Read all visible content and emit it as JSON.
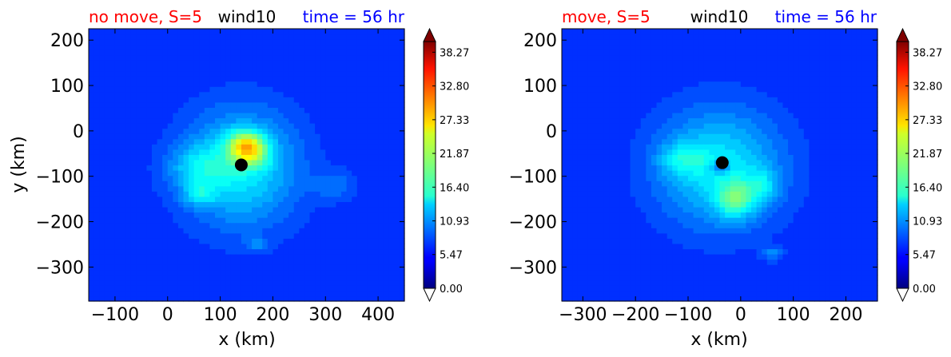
{
  "colors": {
    "title_left": "#ff0000",
    "title_center": "#000000",
    "title_right": "#0000ff",
    "marker": "#000000"
  },
  "chart_data": [
    {
      "type": "heatmap",
      "title_left": "no move, S=5",
      "title_center": "wind10",
      "title_right": "time = 56 hr",
      "xlabel": "x (km)",
      "ylabel": "y (km)",
      "xlim": [
        -150,
        450
      ],
      "ylim": [
        -375,
        225
      ],
      "xticks": [
        -100,
        0,
        100,
        200,
        300,
        400
      ],
      "xtick_labels": [
        "−100",
        "0",
        "100",
        "200",
        "300",
        "400"
      ],
      "yticks": [
        200,
        100,
        0,
        -100,
        -200,
        -300
      ],
      "ytick_labels": [
        "200",
        "100",
        "0",
        "−100",
        "−200",
        "−300"
      ],
      "center_marker": {
        "x": 140,
        "y": -75
      },
      "colorbar": {
        "min": 0.0,
        "max": 40.0,
        "extend": "both",
        "ticks": [
          38.27,
          32.8,
          27.33,
          21.87,
          16.4,
          10.93,
          5.47,
          0.0
        ],
        "tick_labels": [
          "38.27",
          "32.80",
          "27.33",
          "21.87",
          "16.40",
          "10.93",
          "5.47",
          "0.00"
        ]
      },
      "features": [
        {
          "x": 140,
          "y": -80,
          "sx": 110,
          "sy": 130,
          "v": 9
        },
        {
          "x": 60,
          "y": -80,
          "sx": 60,
          "sy": 50,
          "v": 5
        },
        {
          "x": 150,
          "y": -30,
          "sx": 35,
          "sy": 30,
          "v": 15
        },
        {
          "x": 160,
          "y": -60,
          "sx": 35,
          "sy": 25,
          "v": 6
        },
        {
          "x": 60,
          "y": -140,
          "sx": 30,
          "sy": 25,
          "v": 5
        },
        {
          "x": 320,
          "y": -120,
          "sx": 40,
          "sy": 35,
          "v": 3
        },
        {
          "x": 170,
          "y": -250,
          "sx": 20,
          "sy": 15,
          "v": 4
        }
      ],
      "background_level": 3
    },
    {
      "type": "heatmap",
      "title_left": "move, S=5",
      "title_center": "wind10",
      "title_right": "time = 56 hr",
      "xlabel": "x (km)",
      "ylabel": "",
      "xlim": [
        -340,
        260
      ],
      "ylim": [
        -375,
        225
      ],
      "xticks": [
        -300,
        -200,
        -100,
        0,
        100,
        200
      ],
      "xtick_labels": [
        "−300",
        "−200",
        "−100",
        "0",
        "100",
        "200"
      ],
      "yticks": [
        200,
        100,
        0,
        -100,
        -200,
        -300
      ],
      "ytick_labels": [
        "200",
        "100",
        "0",
        "−100",
        "−200",
        "−300"
      ],
      "center_marker": {
        "x": -35,
        "y": -70
      },
      "colorbar": {
        "min": 0.0,
        "max": 40.0,
        "extend": "both",
        "ticks": [
          38.27,
          32.8,
          27.33,
          21.87,
          16.4,
          10.93,
          5.47,
          0.0
        ],
        "tick_labels": [
          "38.27",
          "32.80",
          "27.33",
          "21.87",
          "16.40",
          "10.93",
          "5.47",
          "0.00"
        ]
      },
      "features": [
        {
          "x": -40,
          "y": -80,
          "sx": 120,
          "sy": 130,
          "v": 9
        },
        {
          "x": -110,
          "y": -60,
          "sx": 45,
          "sy": 35,
          "v": 5
        },
        {
          "x": -10,
          "y": -150,
          "sx": 35,
          "sy": 40,
          "v": 9
        },
        {
          "x": 40,
          "y": -120,
          "sx": 30,
          "sy": 35,
          "v": 5
        },
        {
          "x": -40,
          "y": -80,
          "sx": 18,
          "sy": 14,
          "v": -6
        },
        {
          "x": 60,
          "y": -270,
          "sx": 20,
          "sy": 15,
          "v": 4
        }
      ],
      "background_level": 3
    }
  ]
}
